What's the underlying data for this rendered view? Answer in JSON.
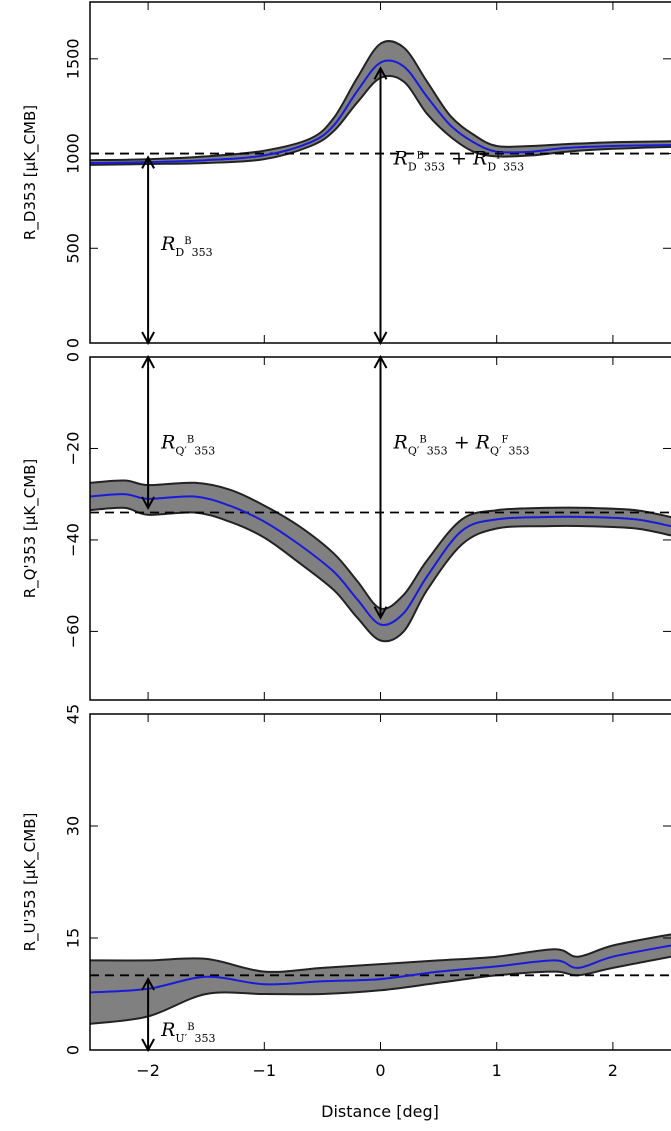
{
  "chart_data": [
    {
      "type": "area",
      "ylabel": "R_D353 [μK_CMB]",
      "ylim": [
        0,
        1800
      ],
      "xlim": [
        -2.5,
        2.5
      ],
      "y_ticks": [
        0,
        500,
        1000,
        1500
      ],
      "x_ticks": [
        -2,
        -1,
        0,
        1,
        2
      ],
      "reference_level": 1000,
      "series": {
        "x": [
          -2.5,
          -2.0,
          -1.5,
          -1.0,
          -0.6,
          -0.4,
          -0.2,
          0.0,
          0.2,
          0.4,
          0.6,
          0.8,
          1.0,
          1.3,
          1.6,
          2.0,
          2.5
        ],
        "mean": [
          950,
          955,
          965,
          990,
          1060,
          1150,
          1330,
          1480,
          1460,
          1300,
          1150,
          1060,
          1010,
          1010,
          1030,
          1040,
          1045
        ],
        "lower": [
          940,
          945,
          950,
          970,
          1040,
          1120,
          1270,
          1400,
          1380,
          1210,
          1090,
          1010,
          985,
          990,
          1010,
          1025,
          1035
        ],
        "upper": [
          965,
          970,
          985,
          1015,
          1080,
          1190,
          1400,
          1580,
          1560,
          1380,
          1200,
          1100,
          1040,
          1040,
          1050,
          1060,
          1065
        ]
      },
      "annotations": [
        {
          "x": -2,
          "y_from": 0,
          "y_to": 980,
          "label_base": "R",
          "sub_symbol": "D",
          "sup": "B",
          "sub2": "353"
        },
        {
          "x": 0,
          "y_from": 0,
          "y_to": 1450,
          "label_base": "R",
          "sub_symbol": "D",
          "sup": "B",
          "sub2": "353",
          "label_extra": "+ R",
          "sub_symbol2": "D",
          "sup2": "F"
        }
      ]
    },
    {
      "type": "area",
      "ylabel": "R_Q'353 [μK_CMB]",
      "ylim": [
        -75,
        0
      ],
      "xlim": [
        -2.5,
        2.5
      ],
      "y_ticks": [
        -60,
        -40,
        -20,
        0
      ],
      "x_ticks": [
        -2,
        -1,
        0,
        1,
        2
      ],
      "reference_level": -34,
      "series": {
        "x": [
          -2.5,
          -2.2,
          -2.0,
          -1.6,
          -1.3,
          -1.0,
          -0.7,
          -0.4,
          -0.2,
          0.0,
          0.2,
          0.4,
          0.7,
          1.0,
          1.4,
          1.8,
          2.2,
          2.5
        ],
        "mean": [
          -30.5,
          -30,
          -31,
          -30.5,
          -32.5,
          -36,
          -41,
          -47,
          -53,
          -58.5,
          -56,
          -48,
          -38,
          -35.5,
          -35,
          -35,
          -35.5,
          -37
        ],
        "lower": [
          -33.5,
          -33,
          -34.5,
          -34,
          -36,
          -39.5,
          -45,
          -51,
          -57,
          -62,
          -60,
          -51,
          -41,
          -37.5,
          -37,
          -37,
          -37.5,
          -39
        ],
        "upper": [
          -27.5,
          -27,
          -28,
          -27.5,
          -29,
          -32.5,
          -37,
          -43,
          -49,
          -55,
          -52,
          -44.5,
          -35.5,
          -33.5,
          -33,
          -33,
          -33.5,
          -35
        ]
      },
      "annotations": [
        {
          "x": -2,
          "y_from": 0,
          "y_to": -33,
          "label_base": "R",
          "sub_symbol": "Q′",
          "sup": "B",
          "sub2": "353"
        },
        {
          "x": 0,
          "y_from": 0,
          "y_to": -57,
          "label_base": "R",
          "sub_symbol": "Q′",
          "sup": "B",
          "sub2": "353",
          "label_extra": "+ R",
          "sub_symbol2": "Q′",
          "sup2": "F"
        }
      ]
    },
    {
      "type": "area",
      "ylabel": "R_U'353 [μK_CMB]",
      "ylim": [
        0,
        45
      ],
      "xlim": [
        -2.5,
        2.5
      ],
      "y_ticks": [
        0,
        15,
        30,
        45
      ],
      "x_ticks": [
        -2,
        -1,
        0,
        1,
        2
      ],
      "xlabel": "Distance [deg]",
      "reference_level": 10,
      "series": {
        "x": [
          -2.5,
          -2.0,
          -1.5,
          -1.0,
          -0.5,
          0.0,
          0.5,
          1.0,
          1.5,
          1.7,
          2.0,
          2.5
        ],
        "mean": [
          7.7,
          8.2,
          9.8,
          8.8,
          9.2,
          9.5,
          10.5,
          11.2,
          12.0,
          11.0,
          12.5,
          14.0
        ],
        "lower": [
          3.5,
          4.5,
          7.5,
          7.5,
          7.5,
          8.0,
          9.0,
          10.0,
          10.5,
          10.0,
          11.0,
          12.5
        ],
        "upper": [
          12.0,
          12.0,
          12.2,
          10.5,
          11.0,
          11.5,
          12.0,
          12.5,
          13.5,
          12.5,
          14.0,
          15.5
        ]
      },
      "annotations": [
        {
          "x": -2,
          "y_from": 0,
          "y_to": 9.5,
          "label_base": "R",
          "sub_symbol": "U′",
          "sup": "B",
          "sub2": "353"
        }
      ]
    }
  ]
}
